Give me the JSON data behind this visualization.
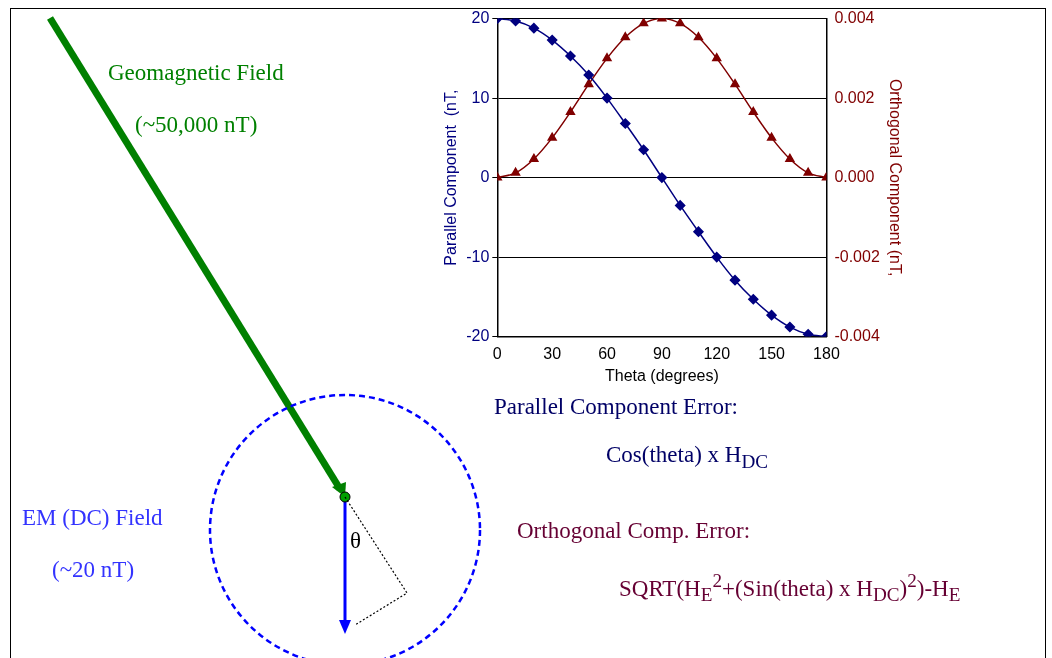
{
  "chart_data": {
    "type": "line",
    "xlabel": "Theta (degrees)",
    "ylabel": "Parallel Component  (nT,",
    "y2label": "Orthogonal Component (nT,",
    "x": [
      0,
      10,
      20,
      30,
      40,
      50,
      60,
      70,
      80,
      90,
      100,
      110,
      120,
      130,
      140,
      150,
      160,
      170,
      180
    ],
    "series": [
      {
        "color": "#000080",
        "marker": "diamond",
        "values": [
          20,
          19.7,
          18.8,
          17.3,
          15.3,
          12.9,
          10,
          6.8,
          3.5,
          0,
          -3.5,
          -6.8,
          -10,
          -12.9,
          -15.3,
          -17.3,
          -18.8,
          -19.7,
          -20
        ]
      },
      {
        "color": "#800000",
        "marker": "triangle",
        "axis": "y2",
        "values": [
          0,
          0.00012,
          0.00047,
          0.001,
          0.00165,
          0.00235,
          0.003,
          0.00353,
          0.00388,
          0.004,
          0.00388,
          0.00353,
          0.003,
          0.00235,
          0.00165,
          0.001,
          0.00047,
          0.00012,
          0
        ]
      }
    ],
    "xlim": [
      0,
      180
    ],
    "xticks": [
      0,
      30,
      60,
      90,
      120,
      150,
      180
    ],
    "ylim": [
      -20,
      20
    ],
    "yticks": [
      -20,
      -10,
      0,
      10,
      20
    ],
    "y2lim": [
      -0.004,
      0.004
    ],
    "y2ticks": [
      {
        "value": -0.004,
        "label": "-0.004"
      },
      {
        "value": -0.002,
        "label": "-0.002"
      },
      {
        "value": 0,
        "label": "0.000"
      },
      {
        "value": 0.002,
        "label": "0.002"
      },
      {
        "value": 0.004,
        "label": "0.004"
      }
    ],
    "grid": "y",
    "legend": false,
    "annotations": [
      "Geomagnetic Field",
      "(~50,000 nT)",
      "EM (DC) Field",
      "(~20 nT)",
      "θ",
      "Parallel Component Error:",
      "Cos(theta) x H$_{DC}$",
      "Orthogonal Comp. Error:",
      "SQRT(H$_{E}$$^{2}$+(Sin(theta) x H$_{DC}$)$^{2}$)-H$_{E}$"
    ]
  }
}
